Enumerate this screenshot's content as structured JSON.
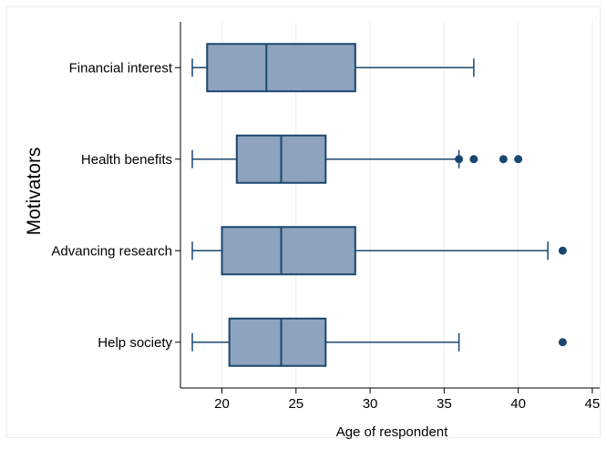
{
  "chart_data": {
    "type": "boxplot",
    "orientation": "horizontal",
    "title": "",
    "xlabel": "Age of respondent",
    "ylabel": "Motivators",
    "xlim": [
      17.2,
      45.5
    ],
    "xticks": [
      20,
      25,
      30,
      35,
      40,
      45
    ],
    "grid": "vertical",
    "legend": "none",
    "categories": [
      "Financial interest",
      "Health benefits",
      "Advancing research",
      "Help society"
    ],
    "series": [
      {
        "category": "Financial interest",
        "whisker_low": 18,
        "q1": 19,
        "median": 23,
        "q3": 29,
        "whisker_high": 37,
        "outliers": []
      },
      {
        "category": "Health benefits",
        "whisker_low": 18,
        "q1": 21,
        "median": 24,
        "q3": 27,
        "whisker_high": 36,
        "outliers": [
          36,
          37,
          39,
          40
        ]
      },
      {
        "category": "Advancing research",
        "whisker_low": 18,
        "q1": 20,
        "median": 24,
        "q3": 29,
        "whisker_high": 42,
        "outliers": [
          43
        ]
      },
      {
        "category": "Help society",
        "whisker_low": 18,
        "q1": 20.5,
        "median": 24,
        "q3": 27,
        "whisker_high": 36,
        "outliers": [
          43
        ]
      }
    ],
    "colors": {
      "box_fill": "#8ea3bd",
      "box_stroke": "#1a476f",
      "outlier": "#1a476f",
      "grid": "#eaf2f3",
      "axis": "#000000",
      "frame": "#e8ecf0"
    }
  }
}
